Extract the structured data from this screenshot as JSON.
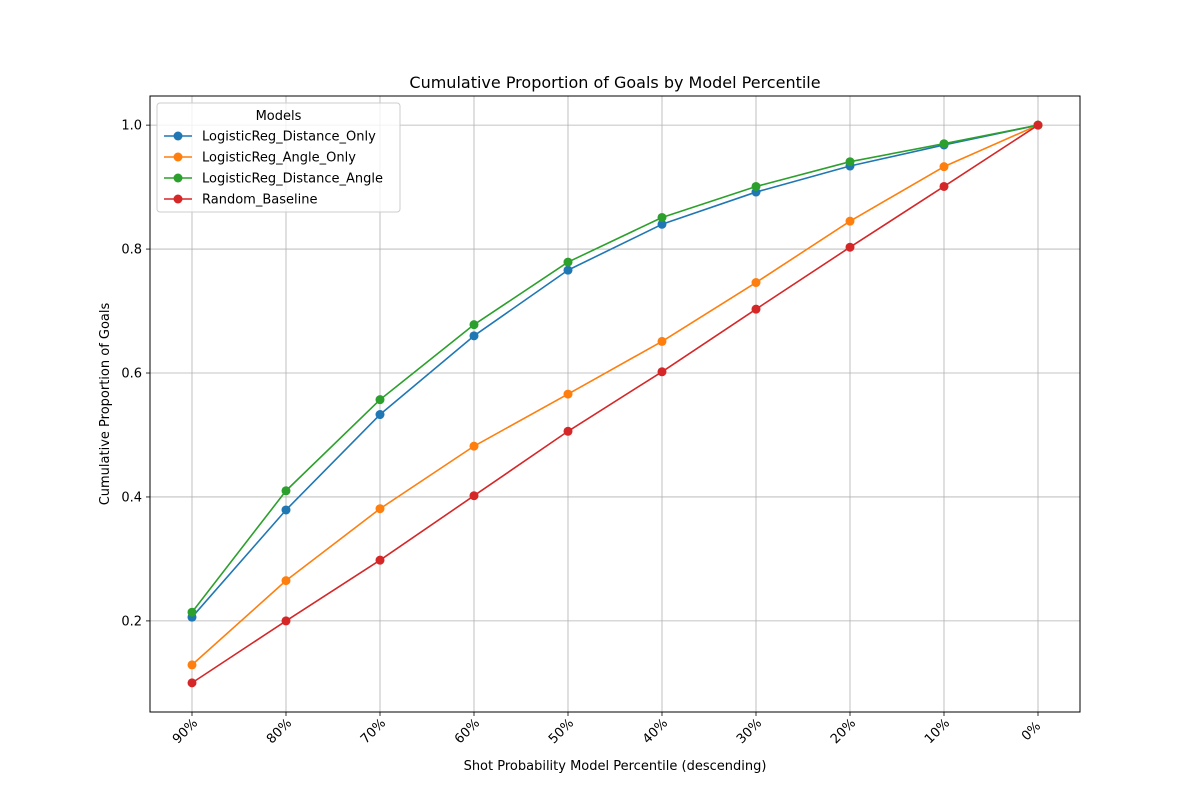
{
  "chart_data": {
    "type": "line",
    "title": "Cumulative Proportion of Goals by Model Percentile",
    "xlabel": "Shot Probability Model Percentile (descending)",
    "ylabel": "Cumulative Proportion of Goals",
    "categories": [
      "90%",
      "80%",
      "70%",
      "60%",
      "50%",
      "40%",
      "30%",
      "20%",
      "10%",
      "0%"
    ],
    "ylim": [
      0.053,
      1.047
    ],
    "yticks": [
      0.2,
      0.4,
      0.6,
      0.8,
      1.0
    ],
    "ytick_labels": [
      "0.2",
      "0.4",
      "0.6",
      "0.8",
      "1.0"
    ],
    "grid": true,
    "legend_title": "Models",
    "legend_position": "upper-left",
    "series": [
      {
        "name": "LogisticReg_Distance_Only",
        "color": "#1f77b4",
        "values": [
          0.206,
          0.379,
          0.533,
          0.66,
          0.766,
          0.84,
          0.892,
          0.934,
          0.968,
          1.0
        ]
      },
      {
        "name": "LogisticReg_Angle_Only",
        "color": "#ff7f0e",
        "values": [
          0.129,
          0.265,
          0.381,
          0.482,
          0.566,
          0.651,
          0.746,
          0.845,
          0.933,
          1.0
        ]
      },
      {
        "name": "LogisticReg_Distance_Angle",
        "color": "#2ca02c",
        "values": [
          0.214,
          0.41,
          0.557,
          0.678,
          0.779,
          0.851,
          0.901,
          0.941,
          0.97,
          1.0
        ]
      },
      {
        "name": "Random_Baseline",
        "color": "#d62728",
        "values": [
          0.1,
          0.2,
          0.298,
          0.402,
          0.506,
          0.602,
          0.703,
          0.803,
          0.901,
          1.0
        ]
      }
    ]
  }
}
